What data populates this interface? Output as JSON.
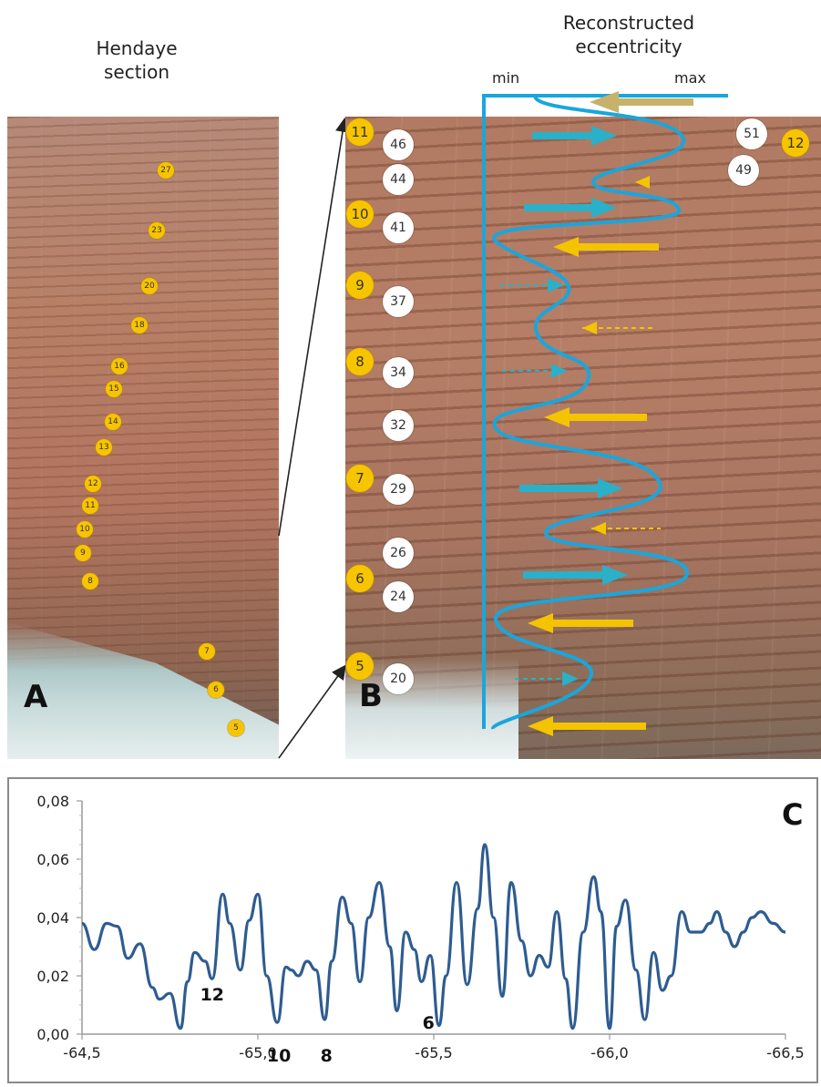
{
  "panel_a": {
    "title_line1": "Hendaye",
    "title_line2": "section",
    "letter": "A",
    "markers": [
      "27",
      "23",
      "20",
      "18",
      "16",
      "15",
      "14",
      "13",
      "12",
      "11",
      "10",
      "9",
      "8",
      "7",
      "6",
      "5"
    ]
  },
  "panel_b": {
    "title_line1": "Reconstructed",
    "title_line2": "eccentricity",
    "min_label": "min",
    "max_label": "max",
    "letter": "B",
    "yellow_markers": [
      "11",
      "10",
      "9",
      "8",
      "7",
      "6",
      "5",
      "12"
    ],
    "white_markers": [
      "46",
      "44",
      "41",
      "37",
      "34",
      "32",
      "29",
      "26",
      "24",
      "20",
      "51",
      "49"
    ],
    "colors": {
      "curve": "#1aa6dc",
      "yellow_arrow": "#f4c400",
      "blue_arrow": "#2ab0c8",
      "top_arrow": "#c6b26a"
    }
  },
  "panel_c": {
    "letter": "C",
    "line_color": "#2e5c91"
  },
  "chart_data": {
    "type": "line",
    "title": "",
    "xlabel": "",
    "ylabel": "",
    "xlim": [
      -64.5,
      -66.5
    ],
    "ylim": [
      0,
      0.08
    ],
    "x_ticks": [
      "-64,5",
      "-65,0",
      "-65,5",
      "-66,0",
      "-66,5"
    ],
    "y_ticks": [
      "0,00",
      "0,02",
      "0,04",
      "0,06",
      "0,08"
    ],
    "grid": false,
    "annotations": [
      "12",
      "10",
      "8",
      "6"
    ],
    "series": [
      {
        "x": [
          -64.5,
          -64.535,
          -64.57,
          -64.6,
          -64.63,
          -64.665,
          -64.7,
          -64.72,
          -64.75,
          -64.78,
          -64.8,
          -64.82,
          -64.85,
          -64.87,
          -64.9,
          -64.92,
          -64.95,
          -64.975,
          -65.0,
          -65.025,
          -65.055,
          -65.08,
          -65.095,
          -65.115,
          -65.14,
          -65.165,
          -65.19,
          -65.21,
          -65.24,
          -65.265,
          -65.29,
          -65.315,
          -65.345,
          -65.375,
          -65.395,
          -65.42,
          -65.445,
          -65.465,
          -65.49,
          -65.515,
          -65.535,
          -65.565,
          -65.595,
          -65.625,
          -65.645,
          -65.67,
          -65.695,
          -65.72,
          -65.75,
          -65.775,
          -65.8,
          -65.825,
          -65.85,
          -65.875,
          -65.895,
          -65.925,
          -65.955,
          -65.975,
          -66.0,
          -66.02,
          -66.045,
          -66.075,
          -66.1,
          -66.125,
          -66.15,
          -66.175,
          -66.205,
          -66.23,
          -66.26,
          -66.285,
          -66.305,
          -66.33,
          -66.355,
          -66.38,
          -66.405,
          -66.43,
          -66.465,
          -66.5
        ],
        "values": [
          0.038,
          0.029,
          0.038,
          0.037,
          0.026,
          0.031,
          0.016,
          0.012,
          0.014,
          0.002,
          0.018,
          0.028,
          0.025,
          0.019,
          0.048,
          0.038,
          0.022,
          0.039,
          0.048,
          0.02,
          0.004,
          0.023,
          0.022,
          0.02,
          0.025,
          0.022,
          0.005,
          0.025,
          0.047,
          0.038,
          0.018,
          0.04,
          0.052,
          0.03,
          0.008,
          0.035,
          0.029,
          0.018,
          0.027,
          0.003,
          0.02,
          0.052,
          0.017,
          0.043,
          0.065,
          0.04,
          0.013,
          0.052,
          0.032,
          0.02,
          0.027,
          0.023,
          0.042,
          0.019,
          0.002,
          0.035,
          0.054,
          0.042,
          0.002,
          0.037,
          0.046,
          0.022,
          0.005,
          0.028,
          0.015,
          0.02,
          0.042,
          0.035,
          0.035,
          0.038,
          0.042,
          0.035,
          0.03,
          0.035,
          0.04,
          0.042,
          0.038,
          0.035
        ]
      }
    ]
  }
}
